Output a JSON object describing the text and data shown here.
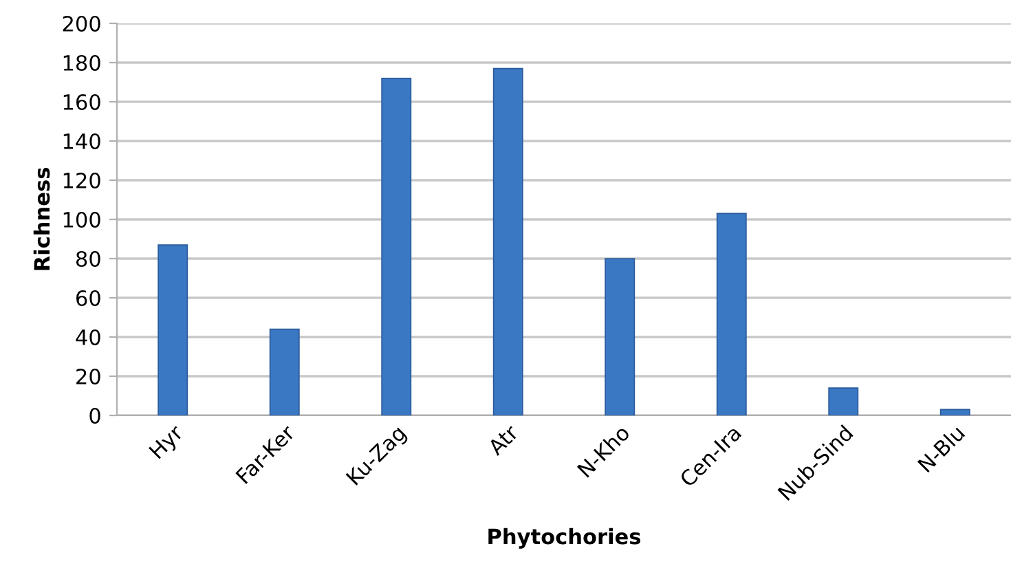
{
  "chart_data": {
    "type": "bar",
    "xlabel": "Phytochories",
    "ylabel": "Richness",
    "categories": [
      "Hyr",
      "Far-Ker",
      "Ku-Zag",
      "Atr",
      "N-Kho",
      "Cen-Ira",
      "Nub-Sind",
      "N-Blu"
    ],
    "values": [
      87,
      44,
      172,
      177,
      80,
      103,
      14,
      3
    ],
    "color": "#3a78c4",
    "ylim": [
      0,
      200
    ],
    "yticks": [
      0,
      20,
      40,
      60,
      80,
      100,
      120,
      140,
      160,
      180,
      200
    ],
    "grid": "y",
    "legend": false
  }
}
